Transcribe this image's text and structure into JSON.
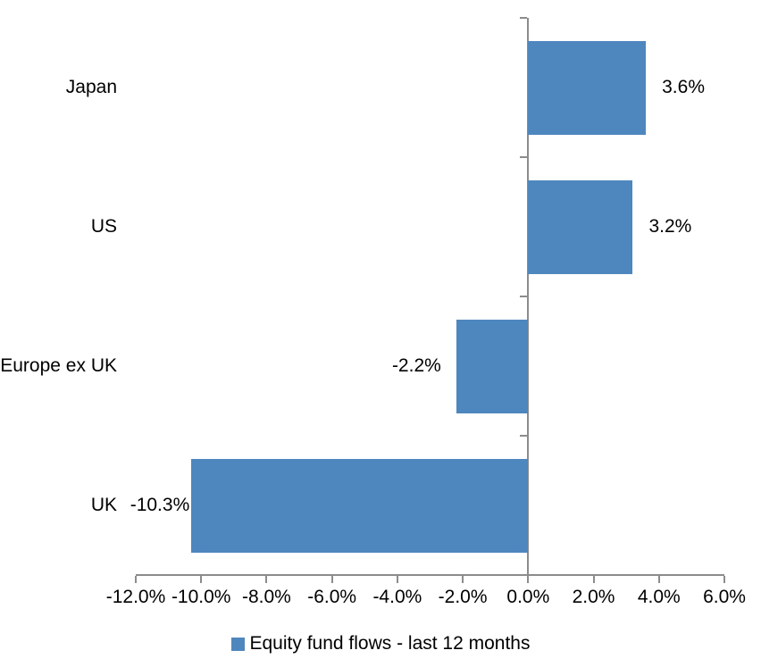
{
  "chart_data": {
    "type": "bar",
    "orientation": "horizontal",
    "title": "",
    "categories": [
      "Japan",
      "US",
      "Europe ex UK",
      "UK"
    ],
    "series": [
      {
        "name": "Equity fund flows - last 12 months",
        "values": [
          3.6,
          3.2,
          -2.2,
          -10.3
        ],
        "data_labels": [
          "3.6%",
          "3.2%",
          "-2.2%",
          "-10.3%"
        ]
      }
    ],
    "xlabel": "",
    "ylabel": "",
    "xlim": [
      -12,
      6
    ],
    "x_tick_step": 2,
    "x_tick_labels": [
      "-12.0%",
      "-10.0%",
      "-8.0%",
      "-6.0%",
      "-4.0%",
      "-2.0%",
      "0.0%",
      "2.0%",
      "4.0%",
      "6.0%"
    ],
    "grid": false,
    "legend": {
      "position": "bottom",
      "label": "Equity fund flows - last 12 months"
    },
    "colors": {
      "bar": "#4E87BE",
      "axis": "#8C8C8C",
      "text": "#000000",
      "background": "#FFFFFF"
    }
  }
}
